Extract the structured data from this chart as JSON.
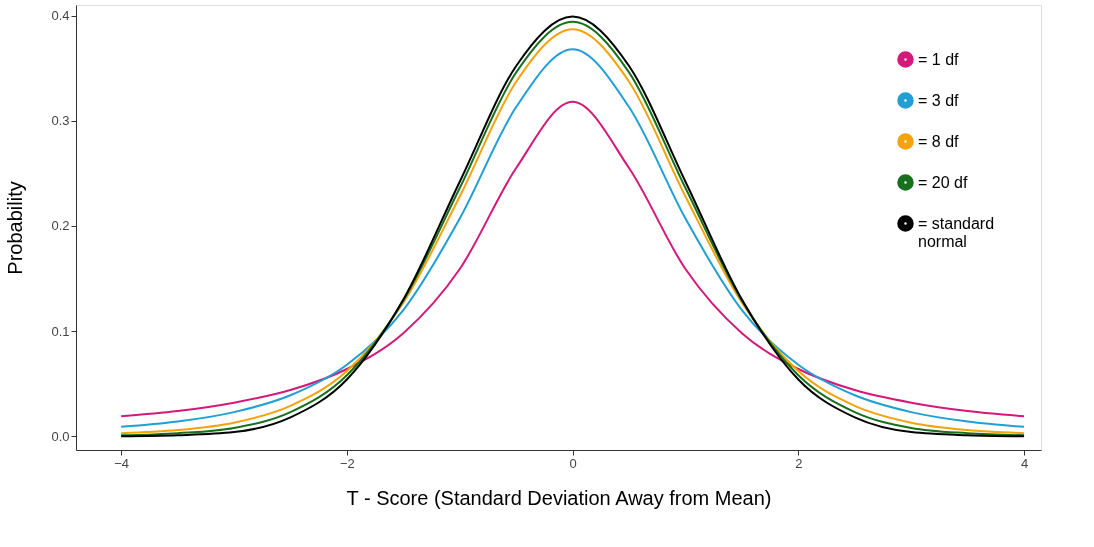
{
  "chart_data": {
    "type": "line",
    "xlabel": "T - Score (Standard Deviation Away from Mean)",
    "ylabel": "Probability",
    "x": [
      -4,
      -3.5,
      -3,
      -2.5,
      -2,
      -1.5,
      -1,
      -0.5,
      0,
      0.5,
      1,
      1.5,
      2,
      2.5,
      3,
      3.5,
      4
    ],
    "series": [
      {
        "name": "= 1 df",
        "color": "#d4197a",
        "values": [
          0.019,
          0.024,
          0.032,
          0.044,
          0.064,
          0.098,
          0.159,
          0.255,
          0.318,
          0.255,
          0.159,
          0.098,
          0.064,
          0.044,
          0.032,
          0.024,
          0.019
        ]
      },
      {
        "name": "= 3 df",
        "color": "#1f9fd4",
        "values": [
          0.009,
          0.014,
          0.023,
          0.039,
          0.068,
          0.12,
          0.207,
          0.313,
          0.368,
          0.313,
          0.207,
          0.12,
          0.068,
          0.039,
          0.023,
          0.014,
          0.009
        ]
      },
      {
        "name": "= 8 df",
        "color": "#f5a20c",
        "values": [
          0.003,
          0.006,
          0.013,
          0.029,
          0.062,
          0.127,
          0.228,
          0.337,
          0.387,
          0.337,
          0.228,
          0.127,
          0.062,
          0.029,
          0.013,
          0.006,
          0.003
        ]
      },
      {
        "name": "= 20 df",
        "color": "#17701b",
        "values": [
          0.001,
          0.003,
          0.008,
          0.023,
          0.058,
          0.129,
          0.236,
          0.346,
          0.394,
          0.346,
          0.236,
          0.129,
          0.058,
          0.023,
          0.008,
          0.003,
          0.001
        ]
      },
      {
        "name": "= standard\nnormal",
        "color": "#000000",
        "values": [
          0.0,
          0.001,
          0.004,
          0.018,
          0.054,
          0.13,
          0.242,
          0.352,
          0.399,
          0.352,
          0.242,
          0.13,
          0.054,
          0.018,
          0.004,
          0.001,
          0.0
        ]
      }
    ],
    "xlim": [
      -4.4,
      4.15
    ],
    "ylim": [
      -0.013,
      0.41
    ],
    "xticks": [
      -4,
      -2,
      0,
      2,
      4
    ],
    "yticks": [
      {
        "value": 0,
        "label": "0.0"
      },
      0.1,
      0.2,
      0.3,
      0.4
    ],
    "grid": false,
    "legend": "top right",
    "marker": "none",
    "line_style": "solid"
  }
}
